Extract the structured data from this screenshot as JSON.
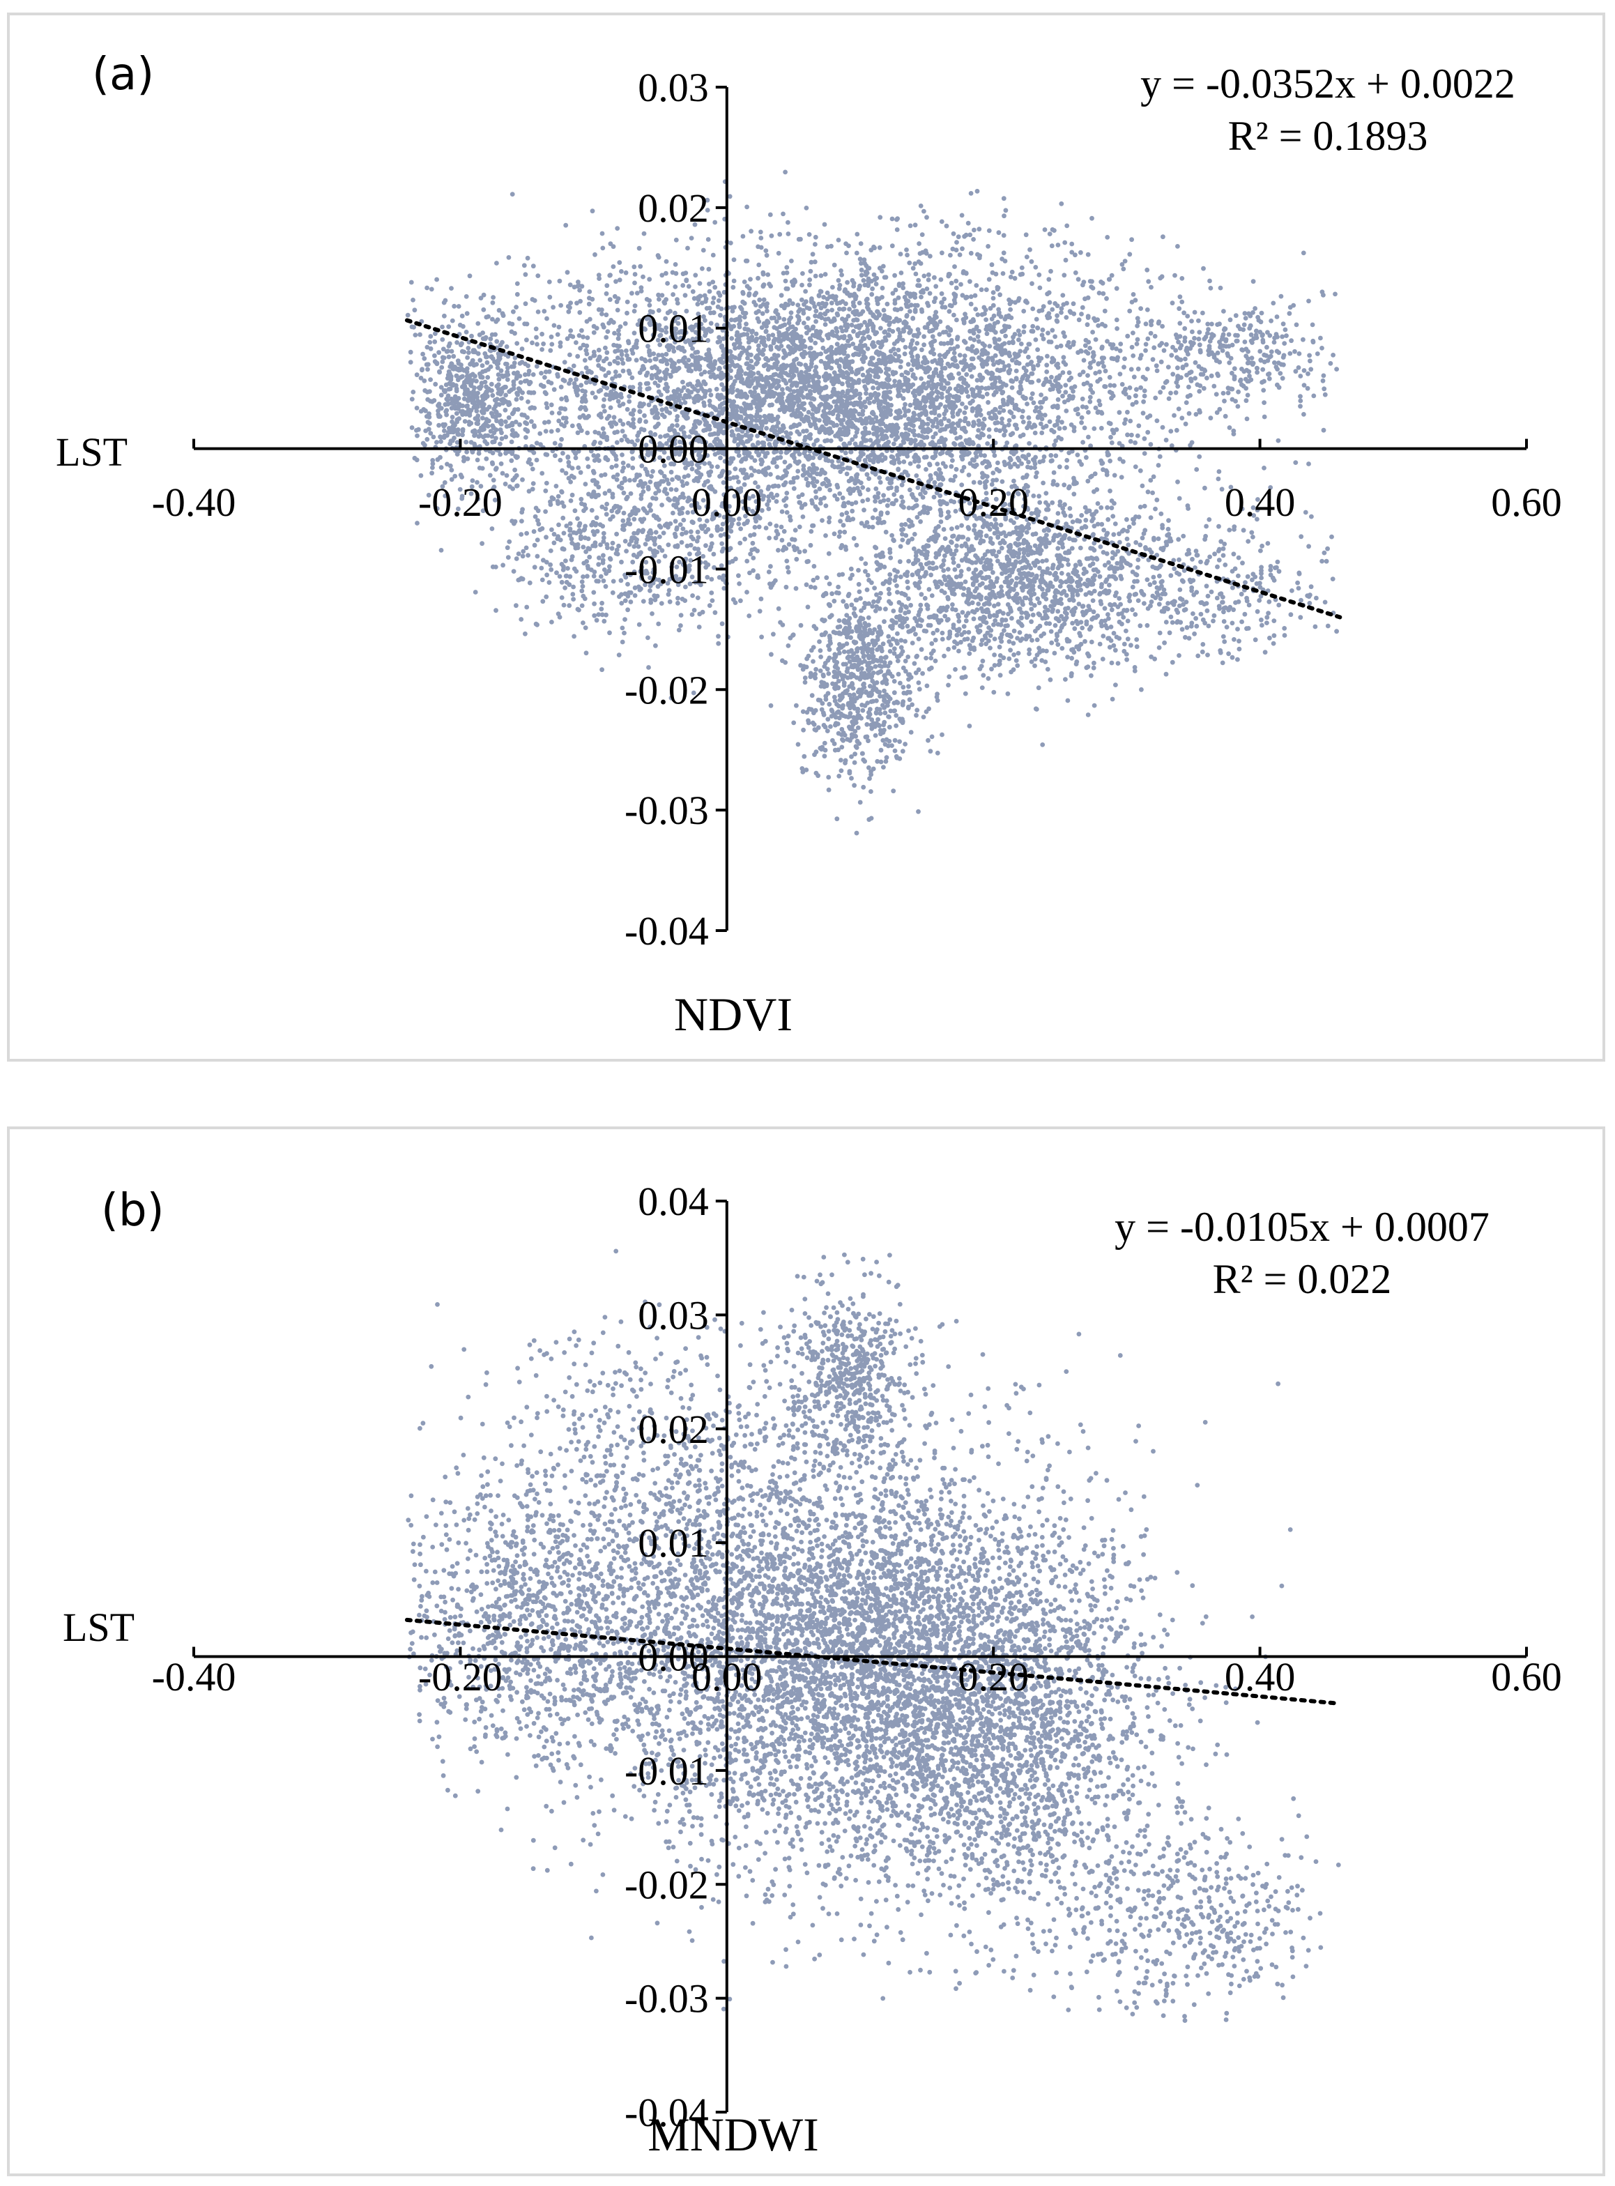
{
  "chart_data": [
    {
      "type": "scatter",
      "panel_label": "(a)",
      "xlabel": "NDVI",
      "ylabel": "LST",
      "xlim": [
        -0.4,
        0.6
      ],
      "ylim": [
        -0.04,
        0.03
      ],
      "x_ticks": [
        "-0.40",
        "-0.20",
        "0.00",
        "0.20",
        "0.40",
        "0.60"
      ],
      "y_ticks": [
        "0.03",
        "0.02",
        "0.01",
        "0.00",
        "-0.01",
        "-0.02",
        "-0.03",
        "-0.04"
      ],
      "equation": "y = -0.0352x + 0.0022",
      "r_squared": "R² = 0.1893",
      "trendline": {
        "slope": -0.0352,
        "intercept": 0.0022,
        "x_range": [
          -0.24,
          0.46
        ]
      },
      "point_color": "#8e9bb7",
      "trend_color": "#000000",
      "clusters": [
        {
          "cx": 0.08,
          "cy": 0.005,
          "sx": 0.12,
          "sy": 0.0055,
          "n": 5200,
          "xmin": -0.24,
          "xmax": 0.46
        },
        {
          "cx": -0.19,
          "cy": 0.004,
          "sx": 0.025,
          "sy": 0.0035,
          "n": 600,
          "xmin": -0.24,
          "xmax": 0.46
        },
        {
          "cx": 0.1,
          "cy": -0.019,
          "sx": 0.022,
          "sy": 0.004,
          "n": 700,
          "xmin": -0.24,
          "xmax": 0.46
        },
        {
          "cx": 0.22,
          "cy": -0.011,
          "sx": 0.06,
          "sy": 0.004,
          "n": 1500,
          "xmin": -0.24,
          "xmax": 0.46
        },
        {
          "cx": 0.38,
          "cy": 0.008,
          "sx": 0.04,
          "sy": 0.0025,
          "n": 300,
          "xmin": -0.24,
          "xmax": 0.46
        },
        {
          "cx": 0.38,
          "cy": -0.012,
          "sx": 0.04,
          "sy": 0.003,
          "n": 250,
          "xmin": -0.24,
          "xmax": 0.46
        },
        {
          "cx": -0.06,
          "cy": -0.008,
          "sx": 0.06,
          "sy": 0.004,
          "n": 700,
          "xmin": -0.24,
          "xmax": 0.46
        }
      ]
    },
    {
      "type": "scatter",
      "panel_label": "(b)",
      "xlabel": "MNDWI",
      "ylabel": "LST",
      "xlim": [
        -0.4,
        0.6
      ],
      "ylim": [
        -0.04,
        0.04
      ],
      "x_ticks": [
        "-0.40",
        "-0.20",
        "0.00",
        "0.20",
        "0.40",
        "0.60"
      ],
      "y_ticks": [
        "0.04",
        "0.03",
        "0.02",
        "0.01",
        "0.00",
        "-0.01",
        "-0.02",
        "-0.03",
        "-0.04"
      ],
      "equation": "y = -0.0105x + 0.0007",
      "r_squared": "R² = 0.022",
      "trendline": {
        "slope": -0.0105,
        "intercept": 0.0007,
        "x_range": [
          -0.24,
          0.46
        ]
      },
      "point_color": "#8e9bb7",
      "trend_color": "#000000",
      "clusters": [
        {
          "cx": 0.08,
          "cy": 0.001,
          "sx": 0.1,
          "sy": 0.009,
          "n": 5000,
          "xmin": -0.24,
          "xmax": 0.46
        },
        {
          "cx": 0.09,
          "cy": 0.025,
          "sx": 0.025,
          "sy": 0.004,
          "n": 500,
          "xmin": -0.24,
          "xmax": 0.46
        },
        {
          "cx": -0.15,
          "cy": 0.003,
          "sx": 0.05,
          "sy": 0.006,
          "n": 900,
          "xmin": -0.24,
          "xmax": 0.46
        },
        {
          "cx": 0.2,
          "cy": -0.008,
          "sx": 0.06,
          "sy": 0.008,
          "n": 1700,
          "xmin": -0.24,
          "xmax": 0.46
        },
        {
          "cx": 0.35,
          "cy": -0.023,
          "sx": 0.05,
          "sy": 0.004,
          "n": 450,
          "xmin": -0.24,
          "xmax": 0.46
        },
        {
          "cx": -0.05,
          "cy": 0.018,
          "sx": 0.07,
          "sy": 0.006,
          "n": 500,
          "xmin": -0.24,
          "xmax": 0.46
        }
      ]
    }
  ]
}
